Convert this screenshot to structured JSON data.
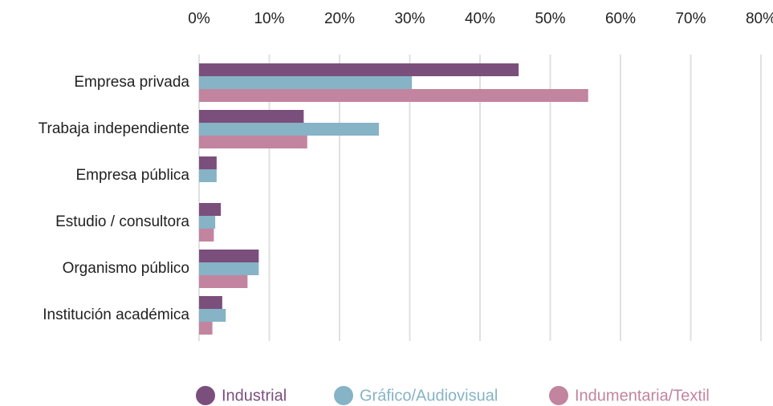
{
  "chart_data": {
    "type": "bar",
    "orientation": "horizontal",
    "categories": [
      "Empresa privada",
      "Trabaja independiente",
      "Empresa pública",
      "Estudio / consultora",
      "Organismo público",
      "Institución académica"
    ],
    "series": [
      {
        "name": "Industrial",
        "color": "#7b4f7c",
        "values": [
          45.5,
          14.9,
          2.5,
          3.1,
          8.5,
          3.3
        ]
      },
      {
        "name": "Gráfico/Audiovisual",
        "color": "#86b3c6",
        "values": [
          30.3,
          25.6,
          2.5,
          2.3,
          8.5,
          3.8
        ]
      },
      {
        "name": "Indumentaria/Textil",
        "color": "#c2849f",
        "values": [
          55.4,
          15.4,
          null,
          2.1,
          6.9,
          1.9
        ]
      }
    ],
    "xlim": [
      0,
      80
    ],
    "xticks": [
      {
        "value": 0,
        "label": "0%"
      },
      {
        "value": 10,
        "label": "10%"
      },
      {
        "value": 20,
        "label": "20%"
      },
      {
        "value": 30,
        "label": "30%"
      },
      {
        "value": 40,
        "label": "40%"
      },
      {
        "value": 50,
        "label": "50%"
      },
      {
        "value": 60,
        "label": "60%"
      },
      {
        "value": 70,
        "label": "70%"
      },
      {
        "value": 80,
        "label": "80%"
      }
    ],
    "grid": true,
    "legend": "bottom"
  }
}
